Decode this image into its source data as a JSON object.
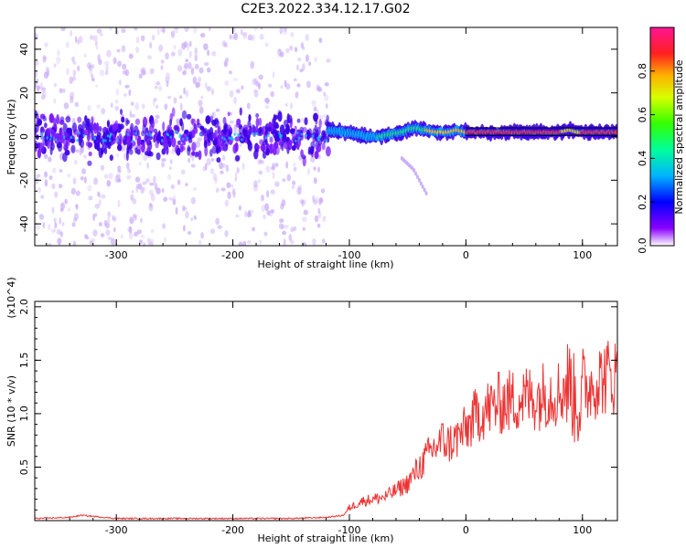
{
  "title": "C2E3.2022.334.12.17.G02",
  "colors": {
    "snr_line": "#ee3333",
    "spectrum_core": "#3a00e6",
    "spectrum_halo": "#c7a8f5",
    "ridge_high": "#ff2a2a",
    "ridge_mid": "#ffd21a",
    "ridge_low": "#19f07a"
  },
  "chart_data": [
    {
      "type": "heatmap",
      "xlabel": "Height of straight line (km)",
      "ylabel": "Frequency (Hz)",
      "xlim": [
        -370,
        130
      ],
      "ylim": [
        -50,
        50
      ],
      "x_ticks": [
        -300,
        -200,
        -100,
        0,
        100
      ],
      "y_ticks": [
        -40,
        -20,
        0,
        20,
        40
      ],
      "colorbar": {
        "label": "Normalized spectral amplitude",
        "range": [
          0.0,
          1.0
        ],
        "ticks": [
          0.0,
          0.2,
          0.4,
          0.6,
          0.8
        ],
        "colormap": "rainbow"
      },
      "noise_region_x": [
        -370,
        -118
      ],
      "ridge": {
        "x": [
          -118,
          -105,
          -95,
          -85,
          -75,
          -65,
          -55,
          -45,
          -35,
          -25,
          -15,
          -8,
          0,
          20,
          40,
          60,
          80,
          90,
          95,
          100,
          130
        ],
        "freq": [
          3,
          2,
          1,
          0,
          0,
          1,
          2,
          4,
          3,
          2,
          2,
          3,
          2,
          2,
          2,
          2,
          2,
          3,
          2,
          2,
          2
        ],
        "amplitude": [
          0.25,
          0.3,
          0.3,
          0.35,
          0.4,
          0.4,
          0.45,
          0.45,
          0.6,
          0.7,
          0.75,
          0.7,
          0.85,
          0.95,
          0.95,
          0.95,
          0.9,
          0.6,
          0.7,
          0.9,
          0.95
        ]
      },
      "tail": {
        "x": [
          -55,
          -45,
          -38,
          -33
        ],
        "freq": [
          -10,
          -15,
          -22,
          -27
        ]
      }
    },
    {
      "type": "line",
      "xlabel": "Height of straight line (km)",
      "ylabel": "SNR (10 * v/v)",
      "y_multiplier": "(x10^4)",
      "xlim": [
        -370,
        130
      ],
      "ylim": [
        0,
        2.05
      ],
      "x_ticks": [
        -300,
        -200,
        -100,
        0,
        100
      ],
      "y_ticks": [
        0.5,
        1.0,
        1.5,
        2.0
      ],
      "series": [
        {
          "x": [
            -370,
            -340,
            -330,
            -300,
            -250,
            -200,
            -150,
            -120,
            -105,
            -100,
            -95,
            -90,
            -80,
            -70,
            -60,
            -50,
            -40,
            -30,
            -20,
            -15,
            -10,
            -5,
            0,
            10,
            20,
            30,
            40,
            50,
            60,
            70,
            80,
            85,
            90,
            93,
            95,
            97,
            100,
            110,
            120,
            130
          ],
          "y": [
            0.02,
            0.03,
            0.05,
            0.02,
            0.02,
            0.02,
            0.02,
            0.03,
            0.05,
            0.12,
            0.15,
            0.18,
            0.2,
            0.22,
            0.28,
            0.35,
            0.5,
            0.65,
            0.75,
            0.72,
            0.75,
            0.8,
            0.85,
            1.0,
            1.05,
            1.1,
            1.12,
            1.15,
            1.15,
            1.2,
            1.2,
            1.25,
            1.3,
            1.1,
            1.2,
            1.05,
            1.2,
            1.3,
            1.35,
            1.35
          ]
        }
      ]
    }
  ]
}
